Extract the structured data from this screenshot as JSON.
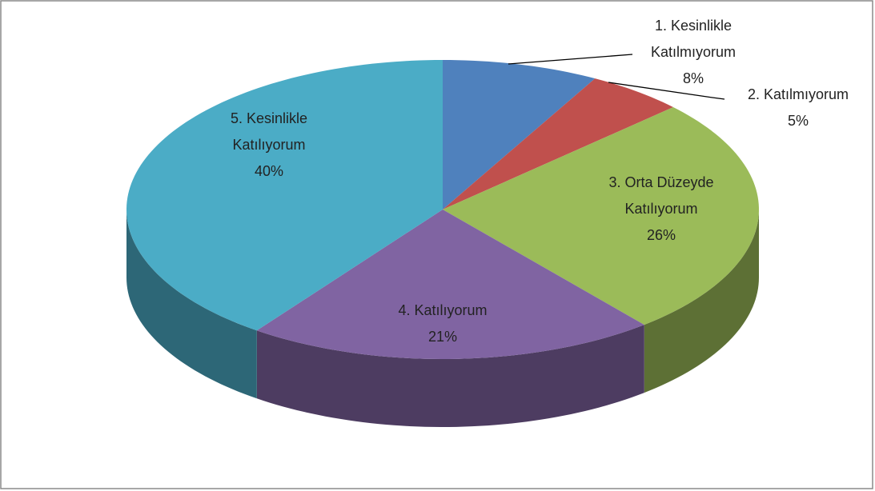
{
  "chart_data": {
    "type": "pie",
    "categories": [
      "1. Kesinlikle Katılmıyorum",
      "2. Katılmıyorum",
      "3. Orta Düzeyde Katılıyorum",
      "4. Katılıyorum",
      "5. Kesinlikle Katılıyorum"
    ],
    "values": [
      8,
      5,
      26,
      21,
      40
    ],
    "value_labels": [
      "8%",
      "5%",
      "26%",
      "21%",
      "40%"
    ],
    "colors": [
      "#4f81bd",
      "#c0504d",
      "#9bbb59",
      "#8064a2",
      "#4bacc6"
    ]
  }
}
